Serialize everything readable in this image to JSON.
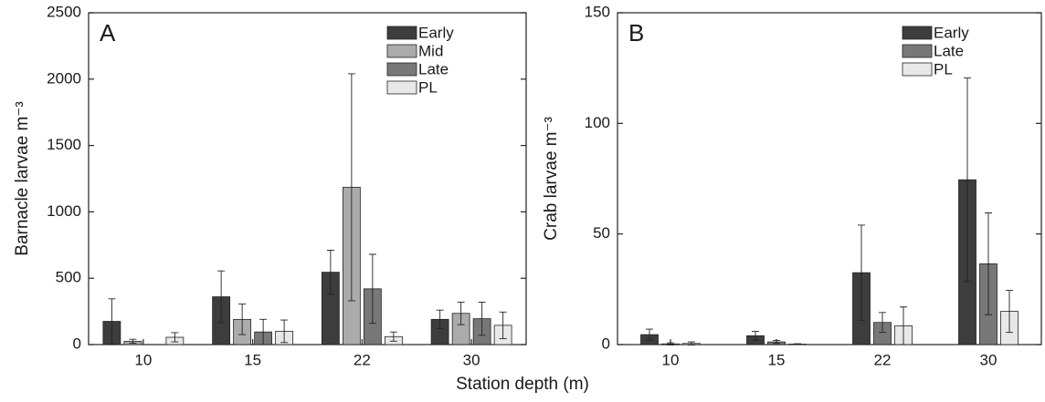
{
  "xlabel": "Station depth (m)",
  "chart_data": [
    {
      "type": "bar",
      "panel": "A",
      "ylabel": "Barnacle larvae m⁻³",
      "categories": [
        "10",
        "15",
        "22",
        "30"
      ],
      "series": [
        {
          "name": "Early",
          "color": "#3d3d3d",
          "values": [
            175,
            360,
            545,
            190
          ],
          "errors": [
            170,
            195,
            165,
            70
          ]
        },
        {
          "name": "Mid",
          "color": "#ababab",
          "values": [
            25,
            190,
            1185,
            235
          ],
          "errors": [
            15,
            115,
            855,
            85
          ]
        },
        {
          "name": "Late",
          "color": "#787878",
          "values": [
            0,
            95,
            420,
            195
          ],
          "errors": [
            0,
            95,
            260,
            125
          ]
        },
        {
          "name": "PL",
          "color": "#e8e8e8",
          "values": [
            55,
            100,
            60,
            145
          ],
          "errors": [
            35,
            85,
            35,
            100
          ]
        }
      ],
      "ylim": [
        0,
        2500
      ],
      "yticks": [
        0,
        500,
        1000,
        1500,
        2000,
        2500
      ]
    },
    {
      "type": "bar",
      "panel": "B",
      "ylabel": "Crab larvae m⁻³",
      "categories": [
        "10",
        "15",
        "22",
        "30"
      ],
      "series": [
        {
          "name": "Early",
          "color": "#3d3d3d",
          "values": [
            4.5,
            4,
            32.5,
            74.5
          ],
          "errors": [
            2.5,
            2,
            21.5,
            46
          ]
        },
        {
          "name": "Late",
          "color": "#787878",
          "values": [
            0.3,
            1.2,
            10,
            36.5
          ],
          "errors": [
            0.5,
            0.7,
            4.5,
            23
          ]
        },
        {
          "name": "PL",
          "color": "#e8e8e8",
          "values": [
            0.5,
            0.2,
            8.5,
            15
          ],
          "errors": [
            0.7,
            0.2,
            8.5,
            9.5
          ]
        }
      ],
      "ylim": [
        0,
        150
      ],
      "yticks": [
        0,
        50,
        100,
        150
      ]
    }
  ]
}
